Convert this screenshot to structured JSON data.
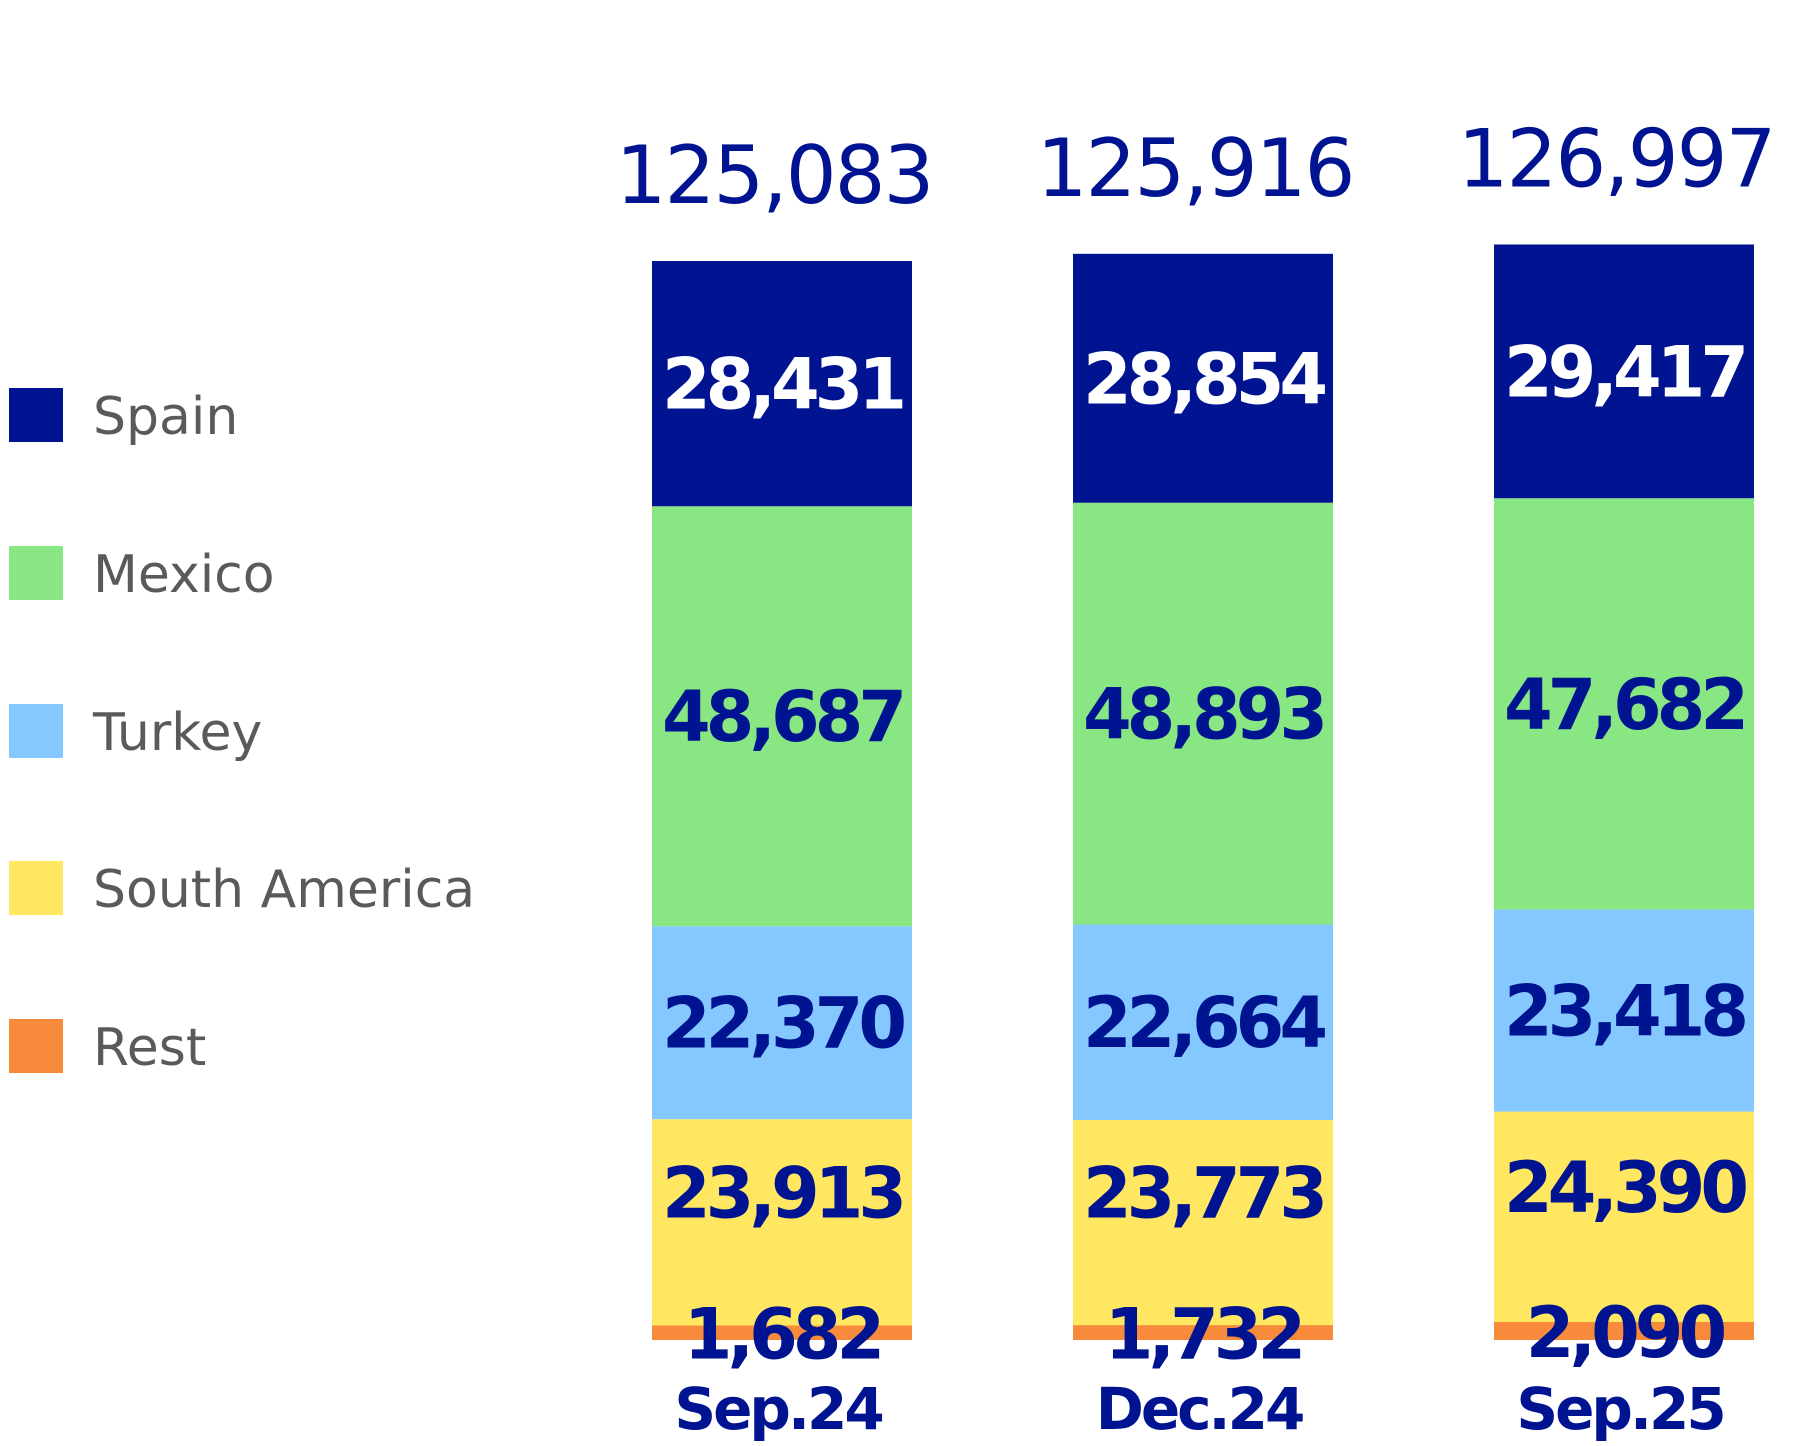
{
  "chart_data": {
    "type": "bar",
    "stacked": true,
    "categories": [
      "Sep.24",
      "Dec.24",
      "Sep.25"
    ],
    "totals": [
      "125,083",
      "125,916",
      "126,997"
    ],
    "series": [
      {
        "name": "Spain",
        "color": "#001391",
        "label_color": "#ffffff",
        "values": [
          28431,
          28854,
          29417
        ],
        "labels": [
          "28,431",
          "28,854",
          "29,417"
        ]
      },
      {
        "name": "Mexico",
        "color": "#88E783",
        "label_color": "#001391",
        "values": [
          48687,
          48893,
          47682
        ],
        "labels": [
          "48,687",
          "48,893",
          "47,682"
        ]
      },
      {
        "name": "Turkey",
        "color": "#85C8FF",
        "label_color": "#001391",
        "values": [
          22370,
          22664,
          23418
        ],
        "labels": [
          "22,370",
          "22,664",
          "23,418"
        ]
      },
      {
        "name": "South America",
        "color": "#FFE761",
        "label_color": "#001391",
        "values": [
          23913,
          23773,
          24390
        ],
        "labels": [
          "23,913",
          "23,773",
          "24,390"
        ]
      },
      {
        "name": "Rest",
        "color": "#F78B3B",
        "label_color": "#001391",
        "values": [
          1682,
          1732,
          2090
        ],
        "labels": [
          "1,682",
          "1,732",
          "2,090"
        ]
      }
    ],
    "legend_placement": "left",
    "grid": false,
    "axes_visible": false
  }
}
